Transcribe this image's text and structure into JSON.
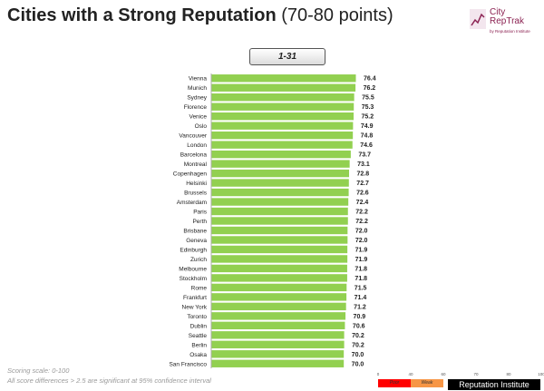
{
  "header": {
    "title_bold": "Cities with a Strong Reputation",
    "title_rest": "(70-80 points)",
    "range_label": "1-31"
  },
  "logo": {
    "line1": "City",
    "line2": "RepTrak",
    "tagline": "by Reputation Institute",
    "color": "#8b2252"
  },
  "chart_data": {
    "type": "bar",
    "orientation": "horizontal",
    "categories": [
      "Vienna",
      "Munich",
      "Sydney",
      "Florence",
      "Venice",
      "Oslo",
      "Vancouver",
      "London",
      "Barcelona",
      "Montreal",
      "Copenhagen",
      "Helsinki",
      "Brussels",
      "Amsterdam",
      "Paris",
      "Perth",
      "Brisbane",
      "Geneva",
      "Edinburgh",
      "Zurich",
      "Melbourne",
      "Stockholm",
      "Rome",
      "Frankfurt",
      "New York",
      "Toronto",
      "Dublin",
      "Seattle",
      "Berlin",
      "Osaka",
      "San Francisco"
    ],
    "values": [
      76.4,
      76.2,
      75.5,
      75.3,
      75.2,
      74.9,
      74.8,
      74.6,
      73.7,
      73.1,
      72.8,
      72.7,
      72.6,
      72.4,
      72.2,
      72.2,
      72.0,
      72.0,
      71.9,
      71.9,
      71.8,
      71.8,
      71.5,
      71.4,
      71.2,
      70.9,
      70.6,
      70.2,
      70.2,
      70.0,
      70.0
    ],
    "value_labels": [
      "76.4",
      "76.2",
      "75.5",
      "75.3",
      "75.2",
      "74.9",
      "74.8",
      "74.6",
      "73.7",
      "73.1",
      "72.8",
      "72.7",
      "72.6",
      "72.4",
      "72.2",
      "72.2",
      "72.0",
      "72.0",
      "71.9",
      "71.9",
      "71.8",
      "71.8",
      "71.5",
      "71.4",
      "71.2",
      "70.9",
      "70.6",
      "70.2",
      "70.2",
      "70.0",
      "70.0"
    ],
    "bar_color": "#92d050"
  },
  "footnotes": {
    "line1": "Scoring scale: 0-100",
    "line2": "All score differences > 2.5 are significant at 95% confidence interval"
  },
  "scale_legend": {
    "ticks": [
      "0",
      "40",
      "60",
      "70",
      "80",
      "100"
    ],
    "segments": [
      {
        "label": "Poor",
        "color": "#ff0000"
      },
      {
        "label": "Weak",
        "color": "#f79646"
      },
      {
        "label": "",
        "color": "#ffffff"
      },
      {
        "label": "",
        "color": "#ffffff"
      },
      {
        "label": "",
        "color": "#ffffff"
      }
    ]
  },
  "brand": "Reputation Institute"
}
